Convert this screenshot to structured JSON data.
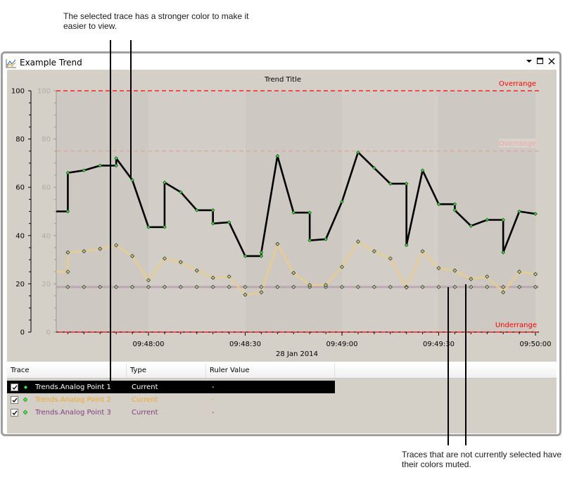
{
  "annotations": {
    "top": "The selected trace has a stronger color to make it easier to view.",
    "bottom": "Traces that are not currently selected have their colors muted."
  },
  "window": {
    "title": "Example Trend",
    "icon": "trend-chart-icon",
    "controls": [
      "dropdown-icon",
      "maximize-icon",
      "close-icon"
    ]
  },
  "chart": {
    "title": "Trend Title",
    "overrange_label": "Overrange",
    "overrange_label_muted": "Overrange",
    "underrange_label": "Underrange",
    "date_label": "28 Jan 2014",
    "y_ticks": [
      "100",
      "80",
      "60",
      "40",
      "20",
      "0"
    ],
    "x_ticks": [
      "09:48:00",
      "09:48:30",
      "09:49:00",
      "09:49:30",
      "09:50:00"
    ]
  },
  "colors": {
    "panel_bg": "#d4d0c8",
    "trace1": "#000000",
    "trace2": "#e8cc90",
    "trace2_text": "#f0a830",
    "trace3": "#b8a0b0",
    "trace3_text": "#804080",
    "overrange": "#ff0000",
    "marker": "#44ee44"
  },
  "chart_data": {
    "type": "line",
    "title": "Trend Title",
    "xlabel": "28 Jan 2014",
    "ylabel": "",
    "ylim": [
      0,
      100
    ],
    "y_ticks": [
      0,
      20,
      40,
      60,
      80,
      100
    ],
    "x_tick_labels": [
      "09:48:00",
      "09:48:30",
      "09:49:00",
      "09:49:30",
      "09:50:00"
    ],
    "x_seconds_offset_from_094800": [
      -25,
      -20,
      -15,
      -10,
      -5,
      0,
      5,
      10,
      15,
      20,
      25,
      30,
      35,
      40,
      45,
      50,
      55,
      60,
      65,
      70,
      75,
      80,
      85,
      90,
      95,
      100,
      105,
      110,
      115,
      120
    ],
    "limits": {
      "overrange": 100,
      "overrange_muted": 75,
      "underrange": 0
    },
    "series": [
      {
        "name": "Trends.Analog Point 1",
        "selected": true,
        "values": [
          66,
          67,
          69,
          72,
          63,
          43.5,
          62,
          58,
          50.5,
          45,
          45.5,
          31.5,
          33,
          73,
          49.5,
          38,
          38.5,
          54,
          74.5,
          68,
          61.5,
          36,
          67,
          53,
          50.5,
          44,
          46.5,
          33,
          50,
          49
        ],
        "step_before": [
          50,
          null,
          null,
          69,
          null,
          null,
          43.5,
          null,
          null,
          50.5,
          null,
          null,
          31.5,
          null,
          null,
          49.5,
          null,
          null,
          null,
          null,
          null,
          61.5,
          null,
          null,
          53,
          null,
          null,
          46.5,
          null,
          null
        ]
      },
      {
        "name": "Trends.Analog Point 2",
        "selected": false,
        "values": [
          33,
          33.5,
          34.5,
          36,
          31.5,
          21.5,
          30.5,
          29,
          25.5,
          22.5,
          23,
          15.5,
          16.5,
          36.5,
          24.5,
          19.5,
          19.5,
          27,
          37.5,
          33.5,
          30.5,
          18.5,
          33.5,
          26.5,
          25.5,
          22,
          23,
          16.5,
          25,
          24
        ],
        "start_value": 25
      },
      {
        "name": "Trends.Analog Point 3",
        "selected": false,
        "values": [
          18.7,
          18.7,
          18.7,
          18.7,
          18.7,
          18.7,
          18.7,
          18.7,
          18.7,
          18.7,
          18.7,
          18.7,
          18.7,
          18.7,
          18.7,
          18.7,
          18.7,
          18.7,
          18.7,
          18.7,
          18.7,
          18.7,
          18.7,
          18.7,
          18.7,
          18.7,
          18.7,
          18.7,
          18.7,
          18.7
        ]
      }
    ]
  },
  "grid": {
    "headers": {
      "trace": "Trace",
      "type": "Type",
      "ruler": "Ruler Value"
    },
    "rows": [
      {
        "checked": true,
        "name": "Trends.Analog Point 1",
        "type": "Current",
        "ruler": "-",
        "selected": true
      },
      {
        "checked": true,
        "name": "Trends.Analog Point 2",
        "type": "Current",
        "ruler": "-",
        "selected": false
      },
      {
        "checked": true,
        "name": "Trends.Analog Point 3",
        "type": "Current",
        "ruler": "-",
        "selected": false
      }
    ]
  }
}
